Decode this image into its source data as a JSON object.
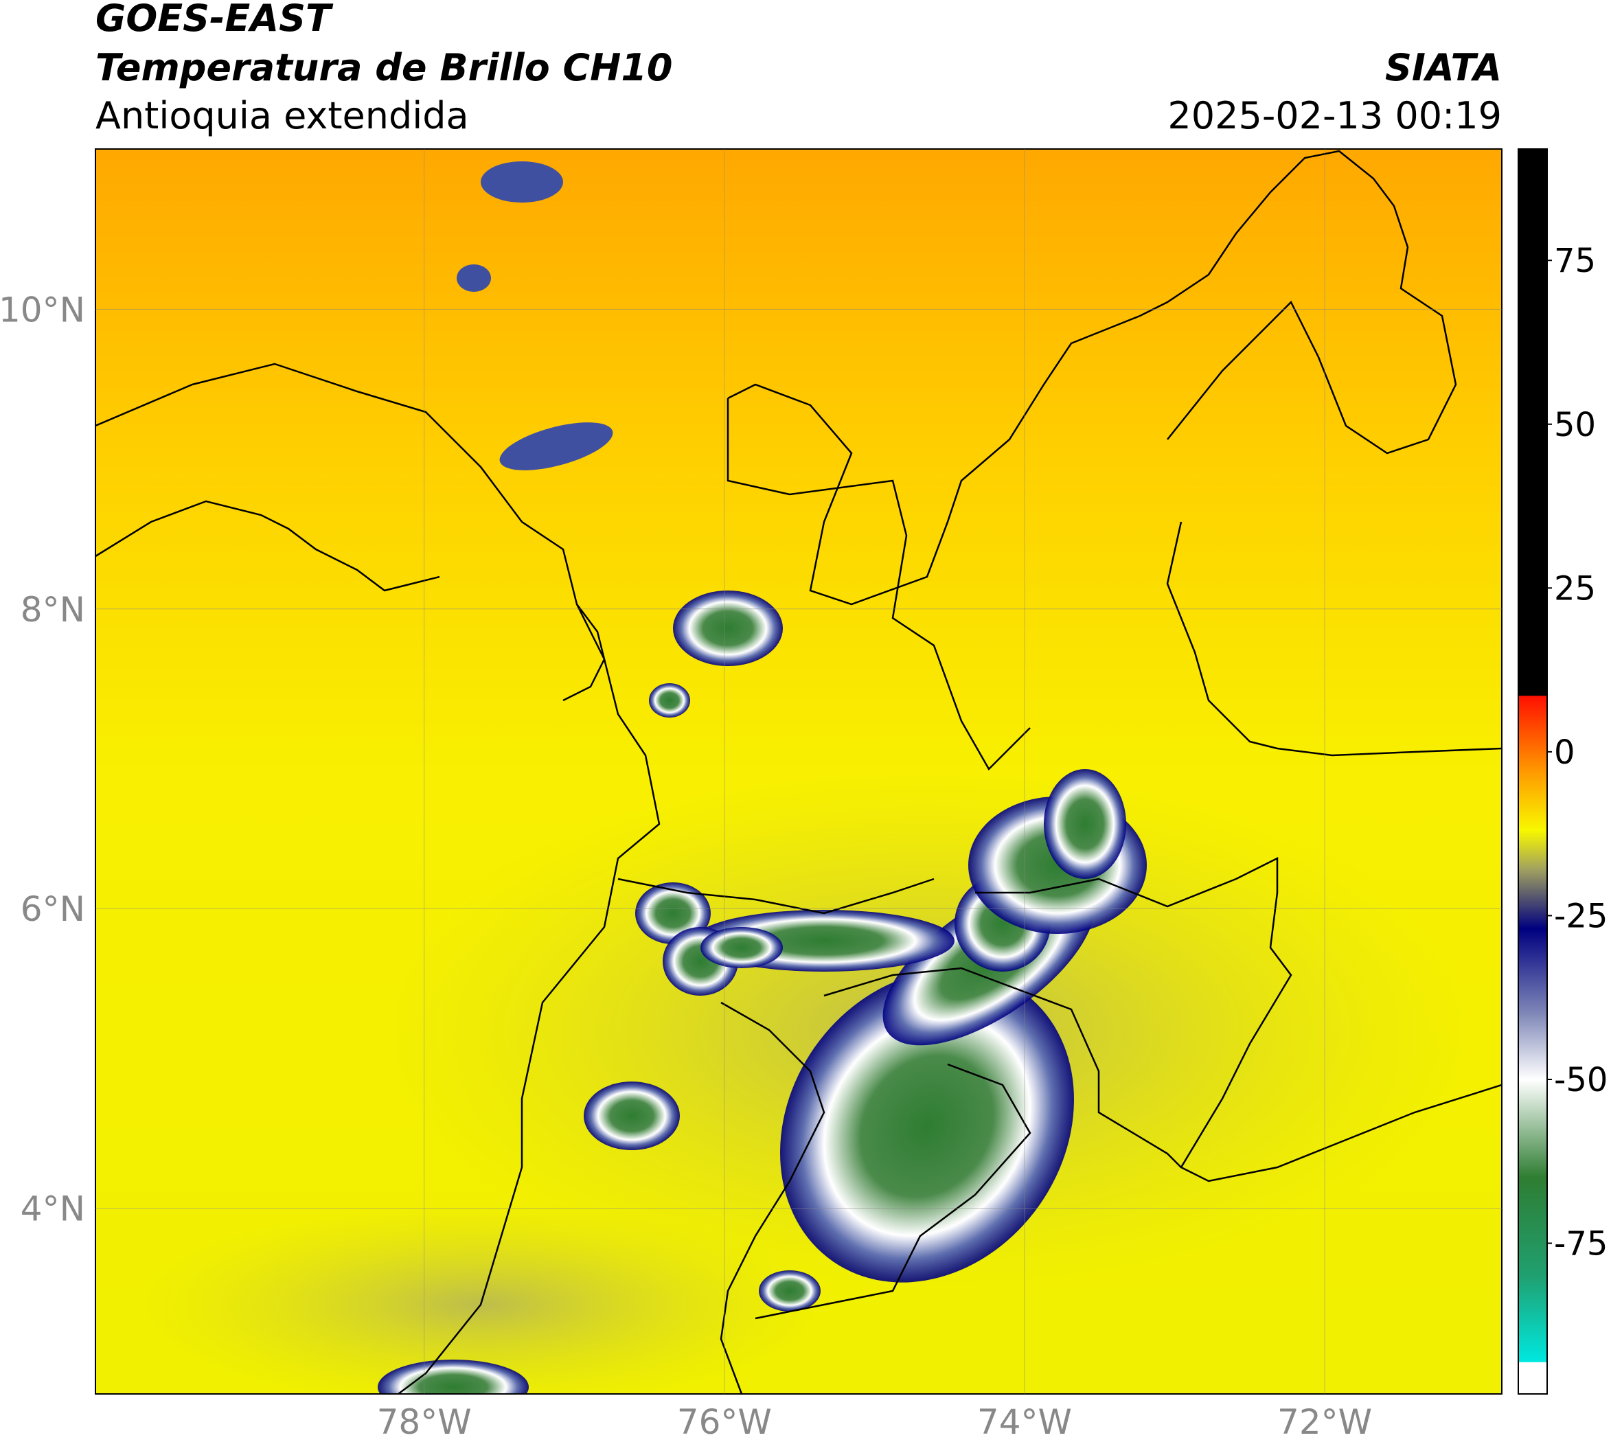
{
  "header": {
    "title_line1": "GOES-EAST",
    "title_line2": "Temperatura de Brillo CH10",
    "subtitle": "Antioquia extendida",
    "agency": "SIATA",
    "datetime": "2025-02-13 00:19"
  },
  "map": {
    "xlim": [
      -80.19,
      -70.82
    ],
    "ylim": [
      2.76,
      11.07
    ],
    "xticks": [
      {
        "value": -78,
        "label": "78°W"
      },
      {
        "value": -76,
        "label": "76°W"
      },
      {
        "value": -74,
        "label": "74°W"
      },
      {
        "value": -72,
        "label": "72°W"
      }
    ],
    "yticks": [
      {
        "value": 4,
        "label": "4°N"
      },
      {
        "value": 6,
        "label": "6°N"
      },
      {
        "value": 8,
        "label": "8°N"
      },
      {
        "value": 10,
        "label": "10°N"
      }
    ],
    "grid": true
  },
  "colorbar": {
    "lim": [
      -98,
      92
    ],
    "ticks": [
      -75,
      -50,
      -25,
      0,
      25,
      50,
      75
    ],
    "stops": [
      {
        "value": -98,
        "color": "#ffffff"
      },
      {
        "value": -93.2,
        "color": "#ffffff"
      },
      {
        "value": -93.1,
        "color": "#00e8e0"
      },
      {
        "value": -80,
        "color": "#20a070"
      },
      {
        "value": -65,
        "color": "#2e7d32"
      },
      {
        "value": -50,
        "color": "#ffffff"
      },
      {
        "value": -40,
        "color": "#8088b8"
      },
      {
        "value": -27,
        "color": "#000080"
      },
      {
        "value": -18,
        "color": "#a0a060"
      },
      {
        "value": -12,
        "color": "#f8f800"
      },
      {
        "value": -3,
        "color": "#ff9900"
      },
      {
        "value": 8.5,
        "color": "#ff1000"
      },
      {
        "value": 8.6,
        "color": "#000000"
      },
      {
        "value": 92,
        "color": "#000000"
      }
    ]
  }
}
